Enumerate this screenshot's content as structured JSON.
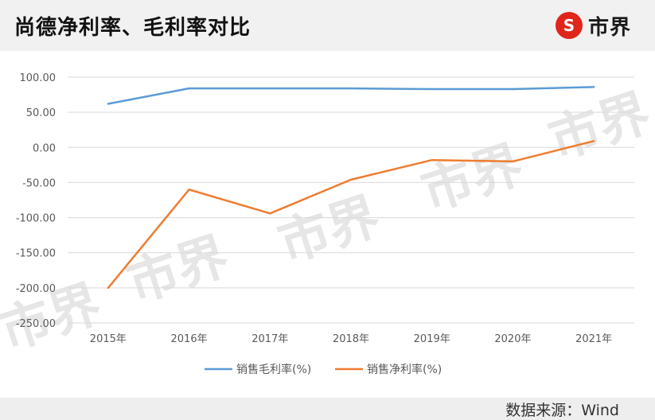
{
  "header": {
    "title": "尚德净利率、毛利率对比",
    "logo_text": "市界",
    "logo_color": "#e0251b"
  },
  "footer": {
    "source": "数据来源：Wind"
  },
  "watermark": "市界",
  "chart_data": {
    "type": "line",
    "categories": [
      "2015年",
      "2016年",
      "2017年",
      "2018年",
      "2019年",
      "2020年",
      "2021年"
    ],
    "series": [
      {
        "name": "销售毛利率(%)",
        "color": "#5b9bd5",
        "values": [
          62,
          84,
          84,
          84,
          83,
          83,
          86
        ]
      },
      {
        "name": "销售净利率(%)",
        "color": "#ed7d31",
        "values": [
          -200,
          -60,
          -94,
          -46,
          -18,
          -20,
          9
        ]
      }
    ],
    "ylim": [
      -250,
      100
    ],
    "yticks": [
      "100.00",
      "50.00",
      "0.00",
      "-50.00",
      "-100.00",
      "-150.00",
      "-200.00",
      "-250.00"
    ],
    "grid": true,
    "legend": "bottom"
  }
}
